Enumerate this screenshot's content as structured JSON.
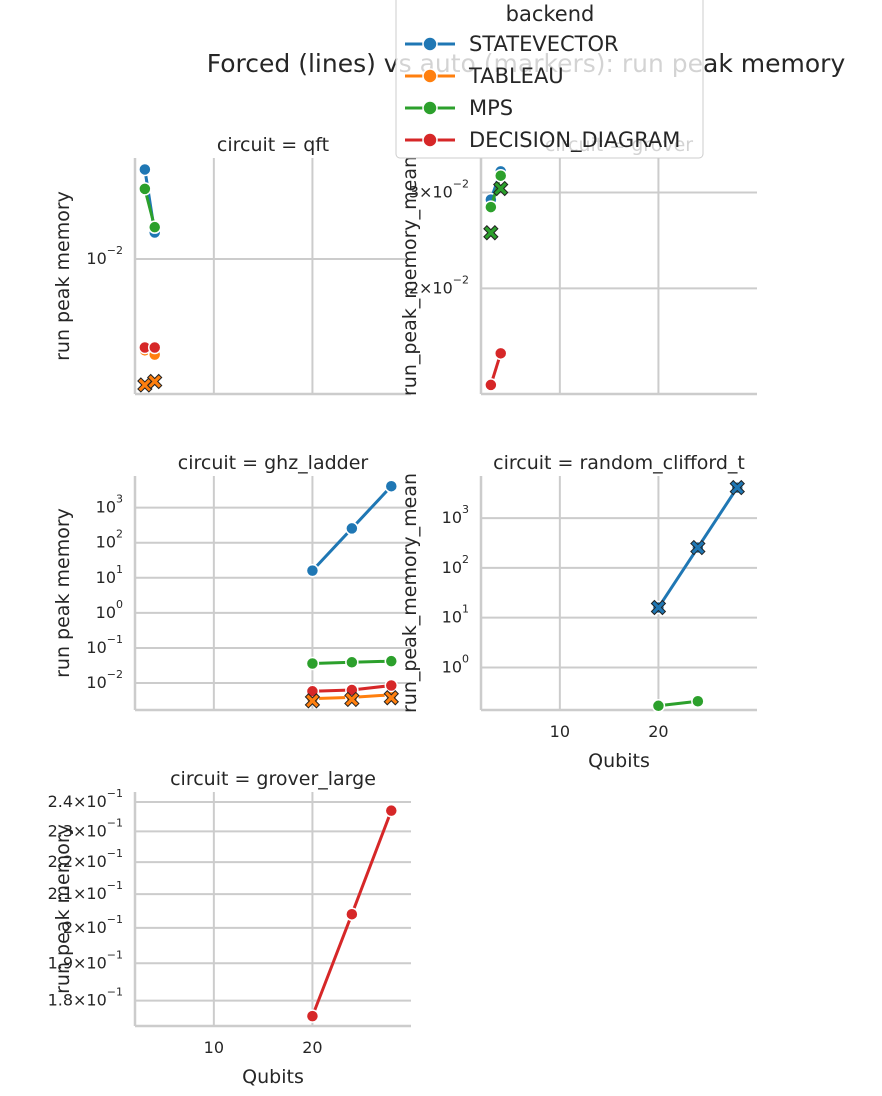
{
  "figure": {
    "title": "Forced (lines) vs auto (markers): run peak memory"
  },
  "legend": {
    "title": "backend",
    "placement": "top-right (overlapping title)",
    "entries": [
      {
        "label": "STATEVECTOR",
        "color": "#1f77b4"
      },
      {
        "label": "TABLEAU",
        "color": "#ff7f0e"
      },
      {
        "label": "MPS",
        "color": "#2ca02c"
      },
      {
        "label": "DECISION_DIAGRAM",
        "color": "#d62728"
      }
    ]
  },
  "chart_data": [
    {
      "type": "line",
      "title": "circuit = qft",
      "xlabel": "",
      "ylabel": "run peak memory",
      "yscale": "log",
      "xlim": [
        2,
        30
      ],
      "ylim": [
        0.0043,
        0.0188
      ],
      "xticks": [
        10,
        20
      ],
      "xtick_labels": [
        "",
        ""
      ],
      "yticks": [
        0.01
      ],
      "ytick_labels": [
        "10^{-2}"
      ],
      "grid": true,
      "series": [
        {
          "name": "STATEVECTOR",
          "x": [
            3,
            4
          ],
          "y": [
            0.0175,
            0.0118
          ]
        },
        {
          "name": "TABLEAU",
          "x": [
            3,
            4
          ],
          "y": [
            0.00565,
            0.0055
          ]
        },
        {
          "name": "MPS",
          "x": [
            3,
            4
          ],
          "y": [
            0.0155,
            0.0122
          ]
        },
        {
          "name": "DECISION_DIAGRAM",
          "x": [
            3,
            4
          ],
          "y": [
            0.00575,
            0.00575
          ]
        }
      ],
      "auto_markers": [
        {
          "backend": "TABLEAU",
          "x": 3,
          "y": 0.00455
        },
        {
          "backend": "TABLEAU",
          "x": 4,
          "y": 0.00465
        }
      ]
    },
    {
      "type": "line",
      "title": "circuit = grover",
      "xlabel": "",
      "ylabel": "run_peak_memory_mean",
      "yscale": "log",
      "xlim": [
        2,
        30
      ],
      "ylim": [
        0.0128,
        0.0347
      ],
      "xticks": [
        10,
        20
      ],
      "xtick_labels": [
        "",
        ""
      ],
      "yticks": [
        0.02,
        0.03
      ],
      "ytick_labels": [
        "2×10^{-2}",
        "3×10^{-2}"
      ],
      "grid": true,
      "series": [
        {
          "name": "STATEVECTOR",
          "x": [
            3,
            4
          ],
          "y": [
            0.0291,
            0.0328
          ]
        },
        {
          "name": "MPS",
          "x": [
            3,
            4
          ],
          "y": [
            0.0282,
            0.0322
          ]
        },
        {
          "name": "DECISION_DIAGRAM",
          "x": [
            3,
            4
          ],
          "y": [
            0.0133,
            0.0152
          ]
        }
      ],
      "auto_markers": [
        {
          "backend": "MPS",
          "x": 3,
          "y": 0.0253
        },
        {
          "backend": "MPS",
          "x": 4,
          "y": 0.0305
        }
      ]
    },
    {
      "type": "line",
      "title": "circuit = ghz_ladder",
      "xlabel": "",
      "ylabel": "run peak memory",
      "yscale": "log",
      "xlim": [
        2,
        30
      ],
      "ylim": [
        0.0017,
        8000
      ],
      "xticks": [
        10,
        20
      ],
      "xtick_labels": [
        "",
        ""
      ],
      "yticks": [
        0.01,
        0.1,
        1,
        10,
        100,
        1000
      ],
      "ytick_labels": [
        "10^{-2}",
        "10^{-1}",
        "10^{0}",
        "10^{1}",
        "10^{2}",
        "10^{3}"
      ],
      "grid": true,
      "series": [
        {
          "name": "STATEVECTOR",
          "x": [
            20,
            24,
            28
          ],
          "y": [
            16,
            256,
            4096
          ]
        },
        {
          "name": "TABLEAU",
          "x": [
            20,
            24,
            28
          ],
          "y": [
            0.0036,
            0.0039,
            0.0046
          ]
        },
        {
          "name": "MPS",
          "x": [
            20,
            24,
            28
          ],
          "y": [
            0.036,
            0.039,
            0.042
          ]
        },
        {
          "name": "DECISION_DIAGRAM",
          "x": [
            20,
            24,
            28
          ],
          "y": [
            0.0058,
            0.0063,
            0.0085
          ]
        }
      ],
      "auto_markers": [
        {
          "backend": "TABLEAU",
          "x": 20,
          "y": 0.0031
        },
        {
          "backend": "TABLEAU",
          "x": 24,
          "y": 0.0034
        },
        {
          "backend": "TABLEAU",
          "x": 28,
          "y": 0.0038
        }
      ]
    },
    {
      "type": "line",
      "title": "circuit = random_clifford_t",
      "xlabel": "Qubits",
      "ylabel": "run_peak_memory_mean",
      "yscale": "log",
      "xlim": [
        2,
        30
      ],
      "ylim": [
        0.14,
        7000
      ],
      "xticks": [
        10,
        20
      ],
      "xtick_labels": [
        "10",
        "20"
      ],
      "yticks": [
        1,
        10,
        100,
        1000
      ],
      "ytick_labels": [
        "10^{0}",
        "10^{1}",
        "10^{2}",
        "10^{3}"
      ],
      "grid": true,
      "series": [
        {
          "name": "STATEVECTOR",
          "x": [
            20,
            24,
            28
          ],
          "y": [
            16,
            256,
            4096
          ]
        },
        {
          "name": "MPS",
          "x": [
            20,
            24
          ],
          "y": [
            0.17,
            0.21
          ]
        }
      ],
      "auto_markers": [
        {
          "backend": "STATEVECTOR",
          "x": 20,
          "y": 16
        },
        {
          "backend": "STATEVECTOR",
          "x": 24,
          "y": 256
        },
        {
          "backend": "STATEVECTOR",
          "x": 28,
          "y": 4096
        }
      ]
    },
    {
      "type": "line",
      "title": "circuit = grover_large",
      "xlabel": "Qubits",
      "ylabel": "run peak memory",
      "yscale": "log",
      "xlim": [
        2,
        30
      ],
      "ylim": [
        0.1735,
        0.2435
      ],
      "xticks": [
        10,
        20
      ],
      "xtick_labels": [
        "10",
        "20"
      ],
      "yticks": [
        0.18,
        0.19,
        0.2,
        0.21,
        0.22,
        0.23,
        0.24
      ],
      "ytick_labels": [
        "1.8×10^{-1}",
        "1.9×10^{-1}",
        "2×10^{-1}",
        "2.1×10^{-1}",
        "2.2×10^{-1}",
        "2.3×10^{-1}",
        "2.4×10^{-1}"
      ],
      "grid": true,
      "series": [
        {
          "name": "DECISION_DIAGRAM",
          "x": [
            20,
            24,
            28
          ],
          "y": [
            0.176,
            0.204,
            0.237
          ]
        }
      ],
      "auto_markers": []
    }
  ]
}
